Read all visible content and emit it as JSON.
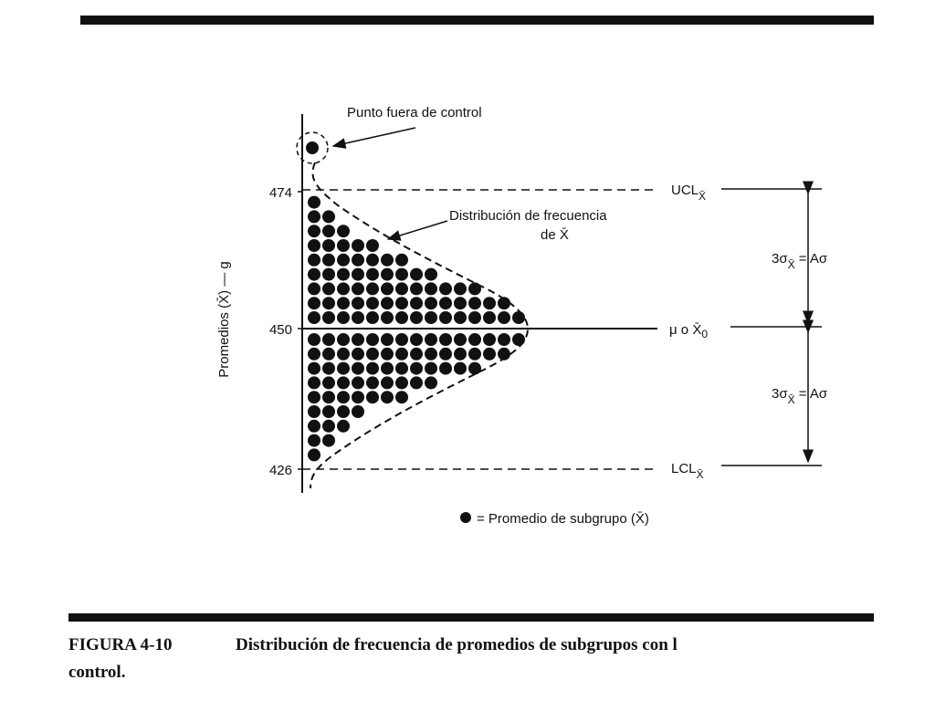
{
  "figure": {
    "y_axis_label": "Promedios (X̄) — g",
    "yticks": [
      474,
      450,
      426
    ],
    "outlier_label": "Punto fuera de control",
    "ucl": {
      "label": "UCL",
      "sub": "X̄"
    },
    "lcl": {
      "label": "LCL",
      "sub": "X̄"
    },
    "center": {
      "label": "μ o X̄",
      "sub": "0"
    },
    "distribution_label": [
      "Distribución de frecuencia",
      "de X̄"
    ],
    "sigma_label": {
      "main": "3σ",
      "sub": "X̄",
      "rest": " = Aσ"
    },
    "legend": "= Promedio de subgrupo (X̄)",
    "upper_rows": [
      15,
      14,
      12,
      9,
      7,
      5,
      3,
      2,
      1
    ],
    "lower_rows": [
      15,
      14,
      12,
      9,
      7,
      4,
      3,
      2,
      1
    ],
    "caption": {
      "number": "FIGURA 4-10",
      "text": "Distribución de frecuencia de promedios de subgrupos con l",
      "line2": "control."
    }
  }
}
